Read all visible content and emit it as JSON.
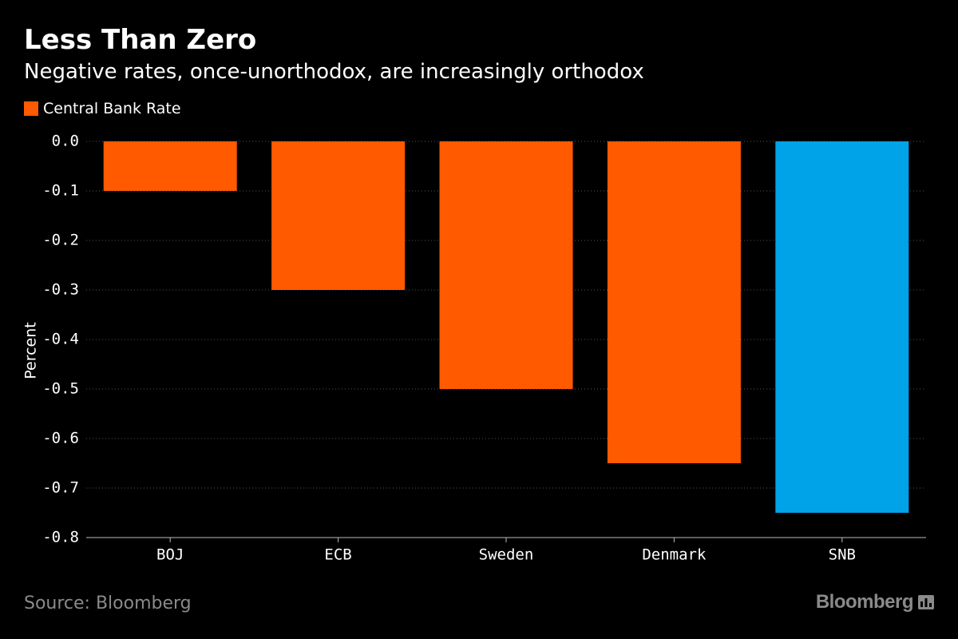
{
  "header": {
    "title": "Less Than Zero",
    "subtitle": "Negative rates, once-unorthodox, are increasingly orthodox"
  },
  "footer": {
    "source": "Source: Bloomberg",
    "brand": "Bloomberg",
    "brand_icon": "bloomberg-chart-icon"
  },
  "colors": {
    "background": "#000000",
    "primary_bar": "#ff5a00",
    "highlight_bar": "#00a2e8",
    "axis_text": "#ffffff",
    "grid": "#555555",
    "footer_text": "#8a8a8a"
  },
  "chart_data": {
    "type": "bar",
    "title": "Less Than Zero",
    "subtitle": "Negative rates, once-unorthodox, are increasingly orthodox",
    "xlabel": "",
    "ylabel": "Percent",
    "categories": [
      "BOJ",
      "ECB",
      "Sweden",
      "Denmark",
      "SNB"
    ],
    "series": [
      {
        "name": "Central Bank Rate",
        "values": [
          -0.1,
          -0.3,
          -0.5,
          -0.65,
          -0.75
        ],
        "color": "#ff5a00",
        "highlight": {
          "SNB": "#00a2e8"
        }
      }
    ],
    "ylim": [
      -0.8,
      0.0
    ],
    "yticks": [
      0.0,
      -0.1,
      -0.2,
      -0.3,
      -0.4,
      -0.5,
      -0.6,
      -0.7,
      -0.8
    ],
    "ytick_labels": [
      "0.0",
      "-0.1",
      "-0.2",
      "-0.3",
      "-0.4",
      "-0.5",
      "-0.6",
      "-0.7",
      "-0.8"
    ],
    "grid": true,
    "legend": "top-left"
  }
}
